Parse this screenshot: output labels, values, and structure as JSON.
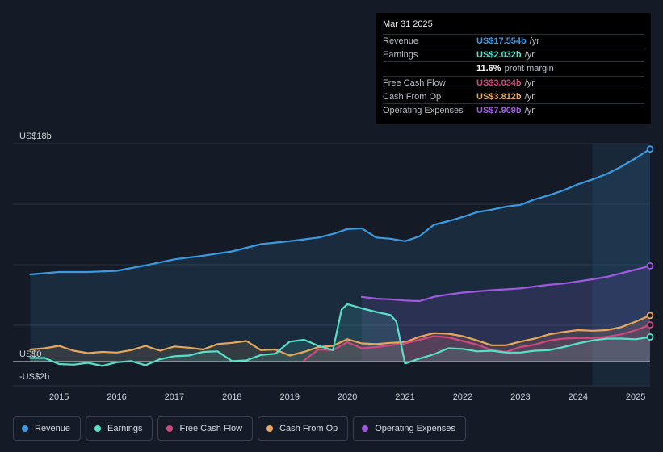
{
  "tooltip": {
    "date": "Mar 31 2025",
    "rows": [
      {
        "label": "Revenue",
        "value": "US$17.554b",
        "unit": "/yr",
        "color": "#3b9ae1"
      },
      {
        "label": "Earnings",
        "value": "US$2.032b",
        "unit": "/yr",
        "color": "#58e0c8"
      },
      {
        "label": "",
        "value": "11.6%",
        "unit": "profit margin",
        "color": "#ffffff"
      },
      {
        "label": "Free Cash Flow",
        "value": "US$3.034b",
        "unit": "/yr",
        "color": "#d1487e"
      },
      {
        "label": "Cash From Op",
        "value": "US$3.812b",
        "unit": "/yr",
        "color": "#e8a75a"
      },
      {
        "label": "Operating Expenses",
        "value": "US$7.909b",
        "unit": "/yr",
        "color": "#a05ae0"
      }
    ]
  },
  "legend": [
    {
      "label": "Revenue",
      "color": "#3b9ae1"
    },
    {
      "label": "Earnings",
      "color": "#58e0c8"
    },
    {
      "label": "Free Cash Flow",
      "color": "#d1487e"
    },
    {
      "label": "Cash From Op",
      "color": "#e8a75a"
    },
    {
      "label": "Operating Expenses",
      "color": "#a05ae0"
    }
  ],
  "chart_data": {
    "type": "line",
    "title": "",
    "xlabel": "",
    "ylabel": "",
    "ylim": [
      -2,
      18
    ],
    "xlim": [
      2014.2,
      2025.25
    ],
    "y_tick_labels": [
      {
        "value": 18,
        "label": "US$18b"
      },
      {
        "value": 0,
        "label": "US$0"
      },
      {
        "value": -2,
        "label": "-US$2b"
      }
    ],
    "x_ticks": [
      2015,
      2016,
      2017,
      2018,
      2019,
      2020,
      2021,
      2022,
      2023,
      2024,
      2025
    ],
    "x_tick_labels": [
      "2015",
      "2016",
      "2017",
      "2018",
      "2019",
      "2020",
      "2021",
      "2022",
      "2023",
      "2024",
      "2025"
    ],
    "forecast_shade_start": 2024.25,
    "series": [
      {
        "name": "Revenue",
        "color": "#3b9ae1",
        "area": true,
        "x": [
          2014.5,
          2015.0,
          2015.5,
          2016.0,
          2016.5,
          2017.0,
          2017.5,
          2018.0,
          2018.5,
          2019.0,
          2019.5,
          2019.75,
          2020.0,
          2020.25,
          2020.5,
          2020.75,
          2021.0,
          2021.25,
          2021.5,
          2021.75,
          2022.0,
          2022.25,
          2022.5,
          2022.75,
          2023.0,
          2023.25,
          2023.5,
          2023.75,
          2024.0,
          2024.25,
          2024.5,
          2024.75,
          2025.0,
          2025.25
        ],
        "y": [
          7.2,
          7.4,
          7.4,
          7.5,
          7.95,
          8.45,
          8.75,
          9.1,
          9.7,
          9.95,
          10.25,
          10.55,
          10.95,
          11.0,
          10.25,
          10.15,
          9.95,
          10.35,
          11.3,
          11.6,
          11.95,
          12.35,
          12.55,
          12.8,
          12.95,
          13.4,
          13.75,
          14.15,
          14.65,
          15.05,
          15.5,
          16.1,
          16.8,
          17.554
        ]
      },
      {
        "name": "Operating Expenses",
        "color": "#a05ae0",
        "area": true,
        "x": [
          2020.25,
          2020.5,
          2020.75,
          2021.0,
          2021.25,
          2021.5,
          2021.75,
          2022.0,
          2022.25,
          2022.5,
          2022.75,
          2023.0,
          2023.25,
          2023.5,
          2023.75,
          2024.0,
          2024.25,
          2024.5,
          2024.75,
          2025.0,
          2025.25
        ],
        "y": [
          5.35,
          5.2,
          5.15,
          5.05,
          5.0,
          5.35,
          5.55,
          5.7,
          5.8,
          5.9,
          5.97,
          6.05,
          6.2,
          6.35,
          6.45,
          6.62,
          6.8,
          7.0,
          7.3,
          7.6,
          7.909
        ]
      },
      {
        "name": "Cash From Op",
        "color": "#e8a75a",
        "area": true,
        "x": [
          2014.5,
          2014.75,
          2015.0,
          2015.25,
          2015.5,
          2015.75,
          2016.0,
          2016.25,
          2016.5,
          2016.75,
          2017.0,
          2017.25,
          2017.5,
          2017.75,
          2018.0,
          2018.25,
          2018.5,
          2018.75,
          2019.0,
          2019.25,
          2019.5,
          2019.75,
          2020.0,
          2020.25,
          2020.5,
          2020.75,
          2021.0,
          2021.25,
          2021.5,
          2021.75,
          2022.0,
          2022.25,
          2022.5,
          2022.75,
          2023.0,
          2023.25,
          2023.5,
          2023.75,
          2024.0,
          2024.25,
          2024.5,
          2024.75,
          2025.0,
          2025.25
        ],
        "y": [
          1.0,
          1.1,
          1.3,
          0.9,
          0.7,
          0.8,
          0.75,
          0.95,
          1.3,
          0.9,
          1.25,
          1.15,
          1.0,
          1.45,
          1.55,
          1.7,
          0.95,
          1.0,
          0.5,
          0.8,
          1.2,
          1.3,
          1.85,
          1.5,
          1.45,
          1.55,
          1.6,
          2.05,
          2.35,
          2.3,
          2.1,
          1.75,
          1.35,
          1.35,
          1.65,
          1.9,
          2.25,
          2.45,
          2.6,
          2.55,
          2.6,
          2.85,
          3.3,
          3.812
        ]
      },
      {
        "name": "Free Cash Flow",
        "color": "#d1487e",
        "area": true,
        "x": [
          2019.25,
          2019.5,
          2019.75,
          2020.0,
          2020.25,
          2020.5,
          2020.75,
          2021.0,
          2021.25,
          2021.5,
          2021.75,
          2022.0,
          2022.25,
          2022.5,
          2022.75,
          2023.0,
          2023.25,
          2023.5,
          2023.75,
          2024.0,
          2024.25,
          2024.5,
          2024.75,
          2025.0,
          2025.25
        ],
        "y": [
          0.1,
          1.0,
          0.95,
          1.6,
          1.1,
          1.2,
          1.35,
          1.5,
          1.8,
          2.1,
          2.0,
          1.7,
          1.4,
          0.95,
          0.8,
          1.2,
          1.4,
          1.75,
          1.9,
          1.95,
          1.95,
          2.05,
          2.25,
          2.6,
          3.034
        ]
      },
      {
        "name": "Earnings",
        "color": "#58e0c8",
        "area": true,
        "x": [
          2014.5,
          2014.75,
          2015.0,
          2015.25,
          2015.5,
          2015.75,
          2016.0,
          2016.25,
          2016.5,
          2016.75,
          2017.0,
          2017.25,
          2017.5,
          2017.75,
          2018.0,
          2018.25,
          2018.5,
          2018.75,
          2019.0,
          2019.25,
          2019.5,
          2019.75,
          2019.9,
          2020.0,
          2020.25,
          2020.5,
          2020.75,
          2020.85,
          2021.0,
          2021.25,
          2021.5,
          2021.75,
          2022.0,
          2022.25,
          2022.5,
          2022.75,
          2023.0,
          2023.25,
          2023.5,
          2023.75,
          2024.0,
          2024.25,
          2024.5,
          2024.75,
          2025.0,
          2025.25
        ],
        "y": [
          0.3,
          0.3,
          -0.2,
          -0.25,
          -0.1,
          -0.35,
          -0.05,
          0.05,
          -0.3,
          0.2,
          0.45,
          0.5,
          0.8,
          0.85,
          0.05,
          0.1,
          0.55,
          0.65,
          1.65,
          1.8,
          1.3,
          0.95,
          4.3,
          4.75,
          4.4,
          4.1,
          3.85,
          3.3,
          -0.15,
          0.25,
          0.6,
          1.1,
          1.05,
          0.85,
          0.9,
          0.75,
          0.75,
          0.9,
          0.95,
          1.2,
          1.5,
          1.75,
          1.9,
          1.9,
          1.85,
          2.032
        ]
      }
    ]
  }
}
